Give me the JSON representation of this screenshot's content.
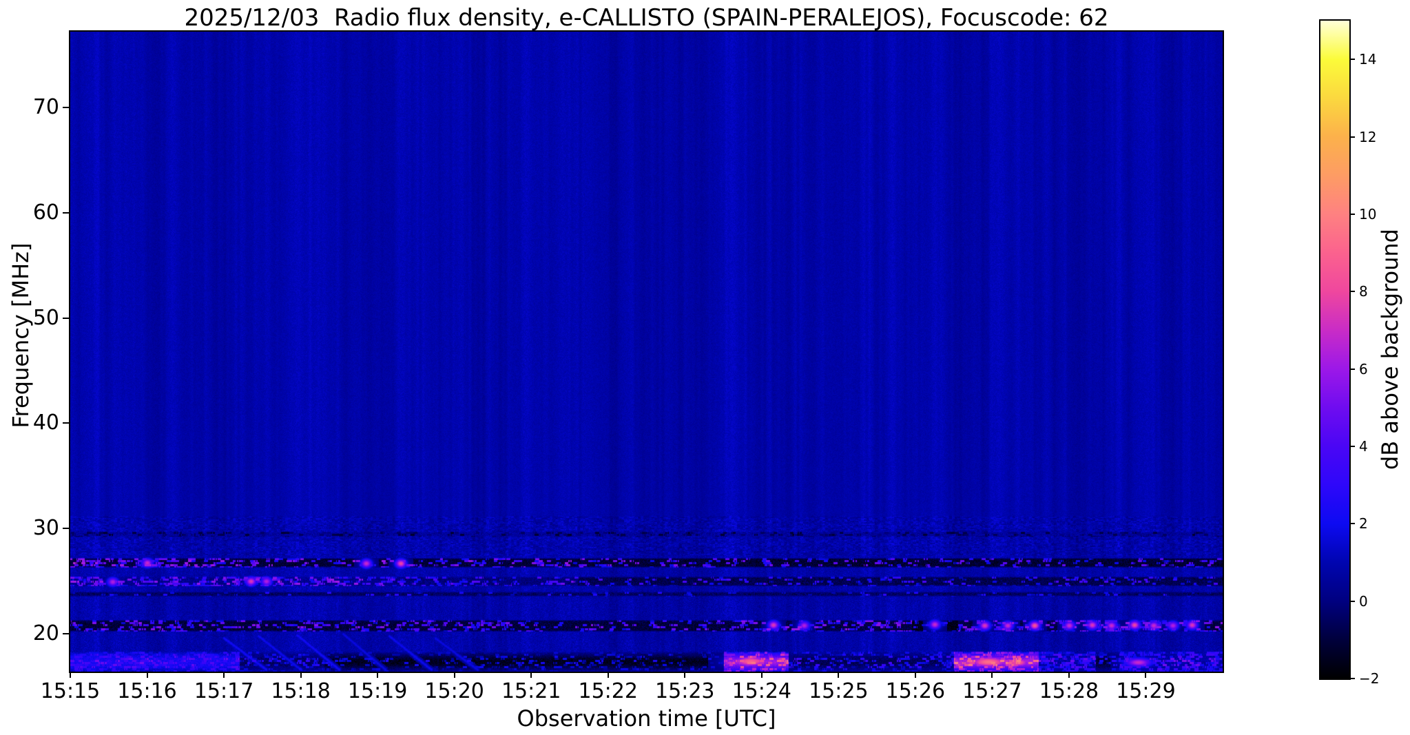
{
  "figure": {
    "title": "2025/12/03  Radio flux density, e-CALLISTO (SPAIN-PERALEJOS), Focuscode: 62",
    "date": "2025/12/03",
    "instrument": "e-CALLISTO",
    "station": "SPAIN-PERALEJOS",
    "focuscode": "62",
    "xlabel": "Observation time [UTC]",
    "ylabel": "Frequency [MHz]",
    "colorbar_label": "dB above background",
    "background_color": "#ffffff",
    "spine_color": "#000000"
  },
  "chart_data": {
    "type": "heatmap",
    "subtype": "radio-spectrogram",
    "title": "2025/12/03  Radio flux density, e-CALLISTO (SPAIN-PERALEJOS), Focuscode: 62",
    "xlabel": "Observation time [UTC]",
    "ylabel": "Frequency [MHz]",
    "colorbar_label": "dB above background",
    "x_ticks": [
      {
        "label": "15:15",
        "minute": 0
      },
      {
        "label": "15:16",
        "minute": 1
      },
      {
        "label": "15:17",
        "minute": 2
      },
      {
        "label": "15:18",
        "minute": 3
      },
      {
        "label": "15:19",
        "minute": 4
      },
      {
        "label": "15:20",
        "minute": 5
      },
      {
        "label": "15:21",
        "minute": 6
      },
      {
        "label": "15:22",
        "minute": 7
      },
      {
        "label": "15:23",
        "minute": 8
      },
      {
        "label": "15:24",
        "minute": 9
      },
      {
        "label": "15:25",
        "minute": 10
      },
      {
        "label": "15:26",
        "minute": 11
      },
      {
        "label": "15:27",
        "minute": 12
      },
      {
        "label": "15:28",
        "minute": 13
      },
      {
        "label": "15:29",
        "minute": 14
      }
    ],
    "y_ticks": [
      {
        "label": "70",
        "mhz": 70
      },
      {
        "label": "60",
        "mhz": 60
      },
      {
        "label": "50",
        "mhz": 50
      },
      {
        "label": "40",
        "mhz": 40
      },
      {
        "label": "30",
        "mhz": 30
      },
      {
        "label": "20",
        "mhz": 20
      }
    ],
    "colorbar_ticks": [
      {
        "label": "14",
        "db": 14
      },
      {
        "label": "12",
        "db": 12
      },
      {
        "label": "10",
        "db": 10
      },
      {
        "label": "8",
        "db": 8
      },
      {
        "label": "6",
        "db": 6
      },
      {
        "label": "4",
        "db": 4
      },
      {
        "label": "2",
        "db": 2
      },
      {
        "label": "0",
        "db": 0
      },
      {
        "label": "−2",
        "db": -2
      }
    ],
    "time_range_min": [
      0,
      15
    ],
    "freq_range_mhz": [
      16.4,
      77.2
    ],
    "value_range_db": [
      -2,
      15
    ],
    "grid": false,
    "colormap": {
      "name": "gnuplot2-like",
      "stops": [
        {
          "v": -2,
          "c": "#000000"
        },
        {
          "v": -1,
          "c": "#00003c"
        },
        {
          "v": 0,
          "c": "#000080"
        },
        {
          "v": 1,
          "c": "#0005b0"
        },
        {
          "v": 2,
          "c": "#0d0af2"
        },
        {
          "v": 3,
          "c": "#2e07fa"
        },
        {
          "v": 4,
          "c": "#4a06f5"
        },
        {
          "v": 5,
          "c": "#6f0cf0"
        },
        {
          "v": 6,
          "c": "#9c18e8"
        },
        {
          "v": 7,
          "c": "#c92cc6"
        },
        {
          "v": 8,
          "c": "#ef479e"
        },
        {
          "v": 9,
          "c": "#fb628e"
        },
        {
          "v": 10,
          "c": "#fe8181"
        },
        {
          "v": 11,
          "c": "#fd9c64"
        },
        {
          "v": 12,
          "c": "#fcb14b"
        },
        {
          "v": 13,
          "c": "#fbd83f"
        },
        {
          "v": 14,
          "c": "#fbfb3a"
        },
        {
          "v": 15,
          "c": "#ffffd8"
        }
      ]
    },
    "background_level_db": 0.85,
    "seed": 42,
    "bands": [
      {
        "name": "29.5mhz-dark-broken-line",
        "f0": 29.25,
        "f1": 29.75,
        "seed": 31,
        "segments": [
          {
            "t0": 0,
            "t1": 15,
            "base": 0.55,
            "dens": 0.32,
            "vlo": -1.3,
            "vhi": 0.2,
            "dark": true
          }
        ]
      },
      {
        "name": "27mhz-interference-band",
        "f0": 26.3,
        "f1": 27.2,
        "seed": 21,
        "segments": [
          {
            "t0": 0,
            "t1": 1.9,
            "base": -1.0,
            "dens": 0.5,
            "vlo": 2,
            "vhi": 6.5
          },
          {
            "t0": 1.9,
            "t1": 8.0,
            "base": -1.05,
            "dens": 0.3,
            "vlo": 1.5,
            "vhi": 6
          },
          {
            "t0": 8.0,
            "t1": 15,
            "base": -1.15,
            "dens": 0.22,
            "vlo": 1.5,
            "vhi": 5
          }
        ]
      },
      {
        "name": "25mhz-interference-band",
        "f0": 24.55,
        "f1": 25.45,
        "seed": 22,
        "segments": [
          {
            "t0": 0,
            "t1": 4.2,
            "base": 0.3,
            "dens": 0.5,
            "vlo": 2,
            "vhi": 6.2
          },
          {
            "t0": 4.2,
            "t1": 6.6,
            "base": 0.0,
            "dens": 0.3,
            "vlo": 1.5,
            "vhi": 5
          },
          {
            "t0": 6.6,
            "t1": 15,
            "base": -0.7,
            "dens": 0.2,
            "vlo": 1,
            "vhi": 4
          }
        ]
      },
      {
        "name": "24mhz-faint-line",
        "f0": 23.55,
        "f1": 24.05,
        "seed": 23,
        "segments": [
          {
            "t0": 0,
            "t1": 15,
            "base": -0.45,
            "dens": 0.12,
            "vlo": 0.8,
            "vhi": 3
          }
        ]
      },
      {
        "name": "21mhz-interference-band",
        "f0": 20.25,
        "f1": 21.35,
        "seed": 24,
        "segments": [
          {
            "t0": 0,
            "t1": 8.6,
            "base": -1.0,
            "dens": 0.32,
            "vlo": 1.5,
            "vhi": 5.5
          },
          {
            "t0": 8.6,
            "t1": 10.95,
            "base": -0.9,
            "dens": 0.45,
            "vlo": 2,
            "vhi": 6
          },
          {
            "t0": 10.95,
            "t1": 11.55,
            "base": -1.6,
            "dens": 0.15,
            "vlo": 1,
            "vhi": 3
          },
          {
            "t0": 11.55,
            "t1": 15,
            "base": -0.9,
            "dens": 0.45,
            "vlo": 2,
            "vhi": 6
          }
        ]
      },
      {
        "name": "ionospheric-bottom-band",
        "f0": 16.4,
        "f1": 18.35,
        "fc": 17.35,
        "sig": 0.8,
        "seed": 25,
        "segments": [
          {
            "t0": 0,
            "t1": 2.2,
            "base": 2.4,
            "dens": 0.55,
            "vlo": 2.5,
            "vhi": 5.2
          },
          {
            "t0": 2.2,
            "t1": 3.3,
            "base": -0.5,
            "dens": 0.35,
            "vlo": 1,
            "vhi": 3.2
          },
          {
            "t0": 3.3,
            "t1": 8.5,
            "base": -1.5,
            "dens": 0.25,
            "vlo": 0.5,
            "vhi": 2.6
          },
          {
            "t0": 8.5,
            "t1": 9.35,
            "base": 6.0,
            "dens": 0.6,
            "vlo": 5,
            "vhi": 10
          },
          {
            "t0": 9.35,
            "t1": 11.5,
            "base": -0.6,
            "dens": 0.4,
            "vlo": 1,
            "vhi": 4
          },
          {
            "t0": 11.5,
            "t1": 12.6,
            "base": 6.3,
            "dens": 0.65,
            "vlo": 5.5,
            "vhi": 10.5
          },
          {
            "t0": 12.6,
            "t1": 13.35,
            "base": 0.7,
            "dens": 0.6,
            "vlo": 2,
            "vhi": 5.5
          },
          {
            "t0": 13.35,
            "t1": 13.65,
            "base": -1.1,
            "dens": 0.3,
            "vlo": 1,
            "vhi": 3
          },
          {
            "t0": 13.65,
            "t1": 15,
            "base": 0.8,
            "dens": 0.6,
            "vlo": 2,
            "vhi": 5.5
          }
        ]
      }
    ],
    "events": [
      {
        "t": 1.0,
        "f": 26.75,
        "v": 7
      },
      {
        "t": 3.85,
        "f": 26.7,
        "v": 7
      },
      {
        "t": 4.3,
        "f": 26.7,
        "v": 8
      },
      {
        "t": 0.55,
        "f": 24.95,
        "v": 6.5
      },
      {
        "t": 2.35,
        "f": 25.0,
        "v": 7.5
      },
      {
        "t": 2.55,
        "f": 25.0,
        "v": 6.5
      },
      {
        "t": 9.15,
        "f": 20.85,
        "v": 7.5
      },
      {
        "t": 9.55,
        "f": 20.8,
        "v": 6.5
      },
      {
        "t": 11.25,
        "f": 20.9,
        "v": 7
      },
      {
        "t": 11.9,
        "f": 20.8,
        "v": 7.5
      },
      {
        "t": 12.2,
        "f": 20.8,
        "v": 7
      },
      {
        "t": 12.55,
        "f": 20.8,
        "v": 8.5
      },
      {
        "t": 13.0,
        "f": 20.8,
        "v": 7
      },
      {
        "t": 13.3,
        "f": 20.85,
        "v": 7.5
      },
      {
        "t": 13.55,
        "f": 20.8,
        "v": 7
      },
      {
        "t": 13.85,
        "f": 20.85,
        "v": 8
      },
      {
        "t": 14.1,
        "f": 20.8,
        "v": 7
      },
      {
        "t": 14.35,
        "f": 20.8,
        "v": 6.5
      },
      {
        "t": 14.6,
        "f": 20.85,
        "v": 7.5
      },
      {
        "t": 8.85,
        "f": 17.4,
        "v": 9,
        "st": 0.18,
        "sf": 0.4
      },
      {
        "t": 11.95,
        "f": 17.35,
        "v": 9.5,
        "st": 0.2,
        "sf": 0.4
      },
      {
        "t": 12.35,
        "f": 17.3,
        "v": 8.5,
        "st": 0.1,
        "sf": 0.35
      },
      {
        "t": 13.9,
        "f": 17.3,
        "v": 7,
        "st": 0.12,
        "sf": 0.3
      }
    ],
    "streaks": [
      {
        "t0": 2.0,
        "f0": 19.6,
        "t1": 2.55,
        "f1": 16.6,
        "v": 2.2
      },
      {
        "t0": 2.45,
        "f0": 19.8,
        "t1": 3.0,
        "f1": 16.6,
        "v": 2.0
      },
      {
        "t0": 2.95,
        "f0": 19.9,
        "t1": 3.5,
        "f1": 16.6,
        "v": 2.2
      },
      {
        "t0": 3.55,
        "f0": 20.0,
        "t1": 4.1,
        "f1": 16.6,
        "v": 1.8
      },
      {
        "t0": 4.15,
        "f0": 19.8,
        "t1": 4.7,
        "f1": 16.6,
        "v": 2.0
      },
      {
        "t0": 4.75,
        "f0": 19.6,
        "t1": 5.3,
        "f1": 16.6,
        "v": 1.8
      }
    ]
  }
}
